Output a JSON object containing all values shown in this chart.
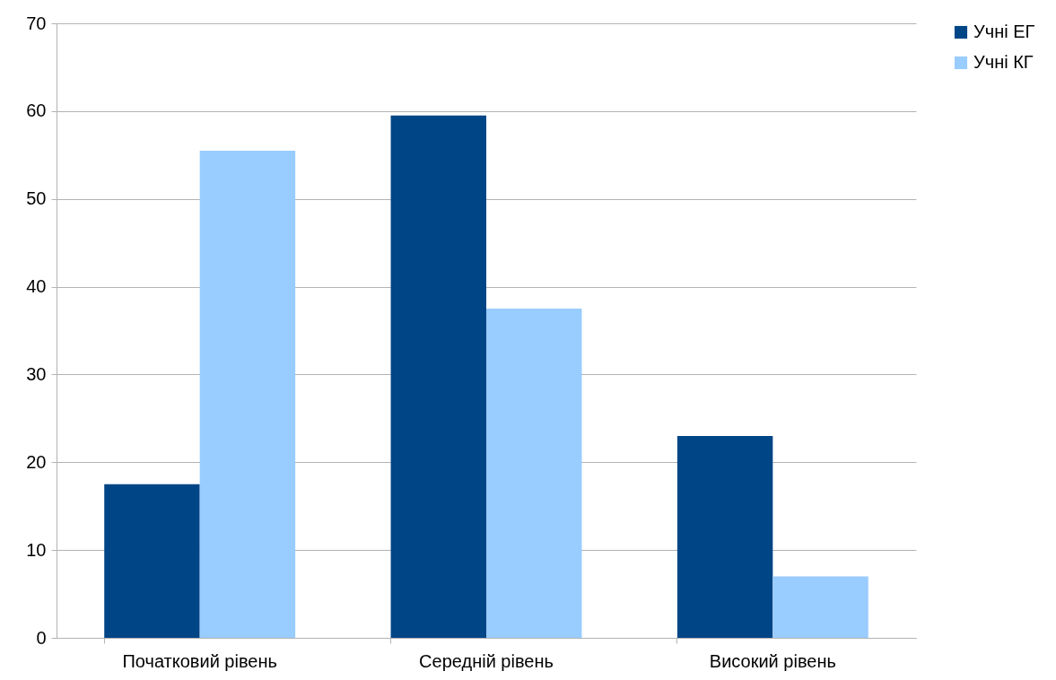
{
  "chart_data": {
    "type": "bar",
    "categories": [
      "Початковий рівень",
      "Середній рівень",
      "Високий рівень"
    ],
    "series": [
      {
        "name": "Учні ЕГ",
        "color": "#004586",
        "values": [
          17.5,
          59.5,
          23
        ]
      },
      {
        "name": "Учні КГ",
        "color": "#99ccff",
        "values": [
          55.5,
          37.5,
          7
        ]
      }
    ],
    "ylim": [
      0,
      70
    ],
    "yticks": [
      0,
      10,
      20,
      30,
      40,
      50,
      60,
      70
    ],
    "grid": "y",
    "legend": "right"
  }
}
